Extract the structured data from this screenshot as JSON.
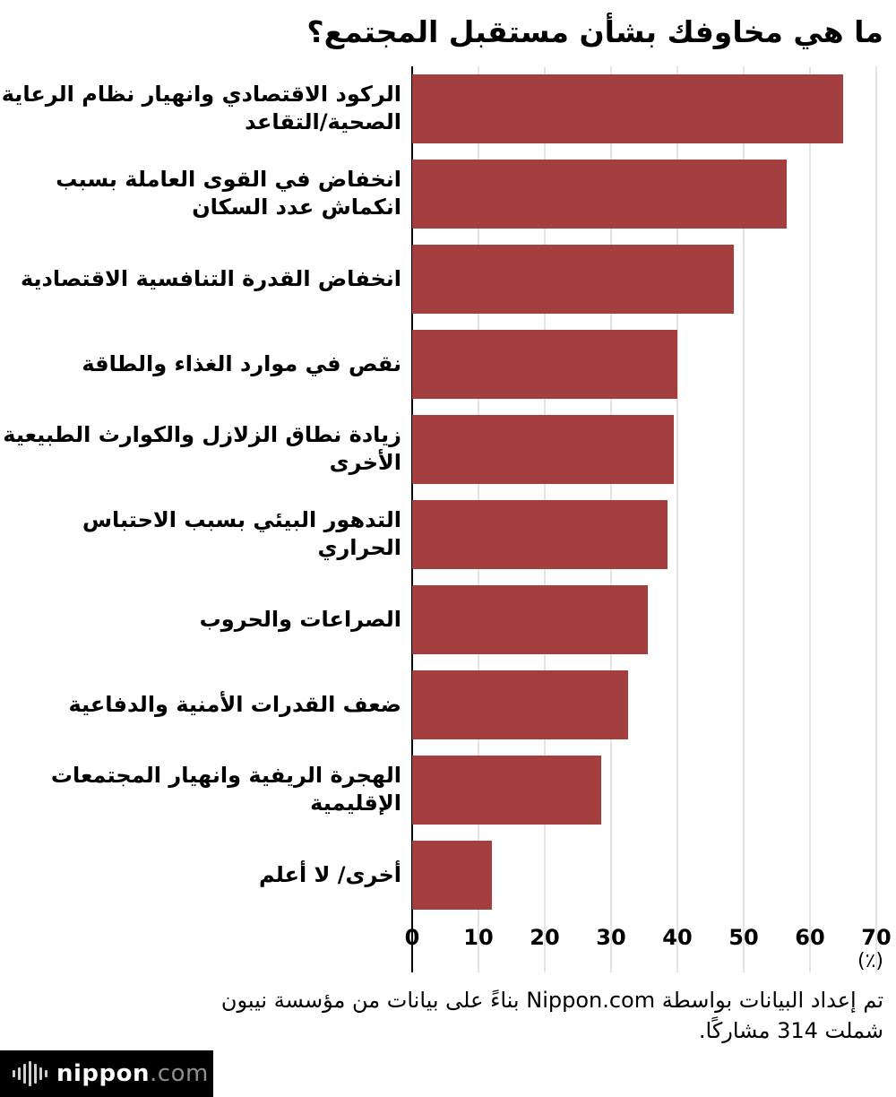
{
  "title": "ما هي مخاوفك بشأن مستقبل المجتمع؟",
  "chart_data": {
    "type": "bar",
    "orientation": "horizontal",
    "title": "ما هي مخاوفك بشأن مستقبل المجتمع؟",
    "categories": [
      "الركود الاقتصادي وانهيار نظام الرعاية الصحية/التقاعد",
      "انخفاض في القوى العاملة بسبب انكماش عدد السكان",
      "انخفاض القدرة التنافسية الاقتصادية",
      "نقص في موارد الغذاء والطاقة",
      "زيادة نطاق الزلازل والكوارث الطبيعية الأخرى",
      "التدهور البيئي بسبب الاحتباس الحراري",
      "الصراعات والحروب",
      "ضعف القدرات الأمنية والدفاعية",
      "الهجرة الريفية وانهيار المجتمعات الإقليمية",
      "أخرى/ لا أعلم"
    ],
    "values": [
      65,
      56.5,
      48.5,
      40,
      39.5,
      38.5,
      35.5,
      32.5,
      28.5,
      12
    ],
    "xlim": [
      0,
      70
    ],
    "xticks": [
      0,
      10,
      20,
      30,
      40,
      50,
      60,
      70
    ],
    "xtick_labels": [
      "0",
      "10",
      "20",
      "30",
      "40",
      "50",
      "60",
      "70"
    ],
    "unit_label": "(٪)",
    "bar_color": "#a53e3e",
    "grid": true,
    "legend": "none"
  },
  "footnote": {
    "line1": "تم إعداد البيانات بواسطة Nippon.com بناءً على بيانات من مؤسسة نيبون",
    "line2": "شملت 314 مشاركًا."
  },
  "logo": {
    "brand": "nippon",
    "domain": ".com"
  },
  "colors": {
    "bar": "#a53e3e",
    "gridline": "#c9c9c9",
    "axis": "#000000",
    "logo_bg": "#000000"
  }
}
